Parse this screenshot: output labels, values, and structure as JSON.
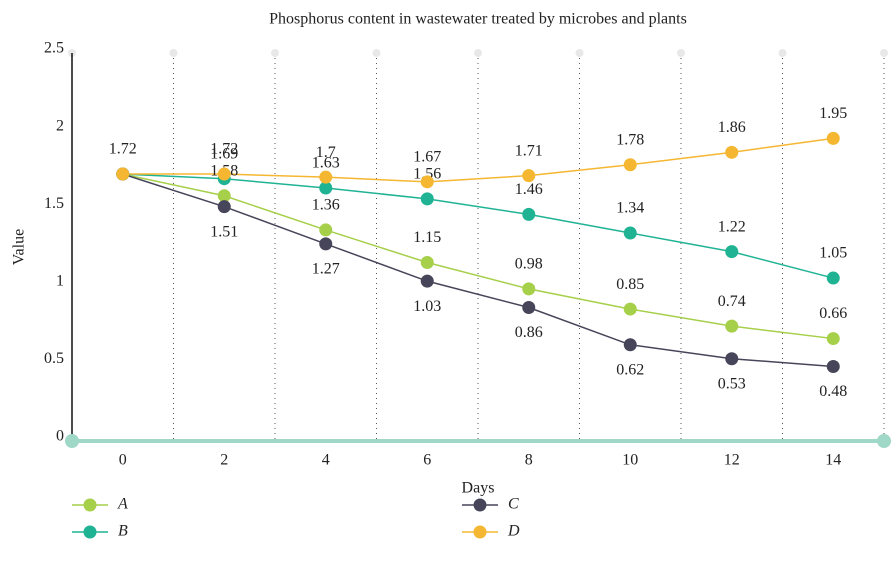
{
  "chart_data": {
    "type": "line",
    "title": "Phosphorus content in wastewater treated by microbes and plants",
    "x_label": "Days",
    "y_label": "Value",
    "x": [
      0,
      2,
      4,
      6,
      8,
      10,
      12,
      14
    ],
    "xlim": [
      -1,
      15
    ],
    "xticks": [
      0,
      2,
      4,
      6,
      8,
      10,
      12,
      14
    ],
    "xgrid": [
      -1,
      1,
      3,
      5,
      7,
      9,
      11,
      13,
      15
    ],
    "ylim": [
      0,
      2.5
    ],
    "yticks": [
      0,
      0.5,
      1,
      1.5,
      2,
      2.5
    ],
    "series": [
      {
        "name": "A",
        "color": "#a6cf4a",
        "values": [
          1.72,
          1.58,
          1.36,
          1.15,
          0.98,
          0.85,
          0.74,
          0.66
        ],
        "value_labels": [
          null,
          "1.58",
          "1.36",
          "1.15",
          "0.98",
          "0.85",
          "0.74",
          "0.66"
        ]
      },
      {
        "name": "B",
        "color": "#1fb394",
        "values": [
          1.72,
          1.69,
          1.63,
          1.56,
          1.46,
          1.34,
          1.22,
          1.05
        ],
        "value_labels": [
          null,
          "1.69",
          "1.63",
          "1.56",
          "1.46",
          "1.34",
          "1.22",
          "1.05"
        ]
      },
      {
        "name": "C",
        "color": "#474559",
        "values": [
          1.72,
          1.51,
          1.27,
          1.03,
          0.86,
          0.62,
          0.53,
          0.48
        ],
        "value_labels": [
          null,
          "1.51",
          "1.27",
          "1.03",
          "0.86",
          "0.62",
          "0.53",
          "0.48"
        ]
      },
      {
        "name": "D",
        "color": "#f5b731",
        "values": [
          1.72,
          1.72,
          1.7,
          1.67,
          1.71,
          1.78,
          1.86,
          1.95
        ],
        "value_labels": [
          "1.72",
          "1.72",
          "1.7",
          "1.67",
          "1.71",
          "1.78",
          "1.86",
          "1.95"
        ]
      }
    ]
  }
}
